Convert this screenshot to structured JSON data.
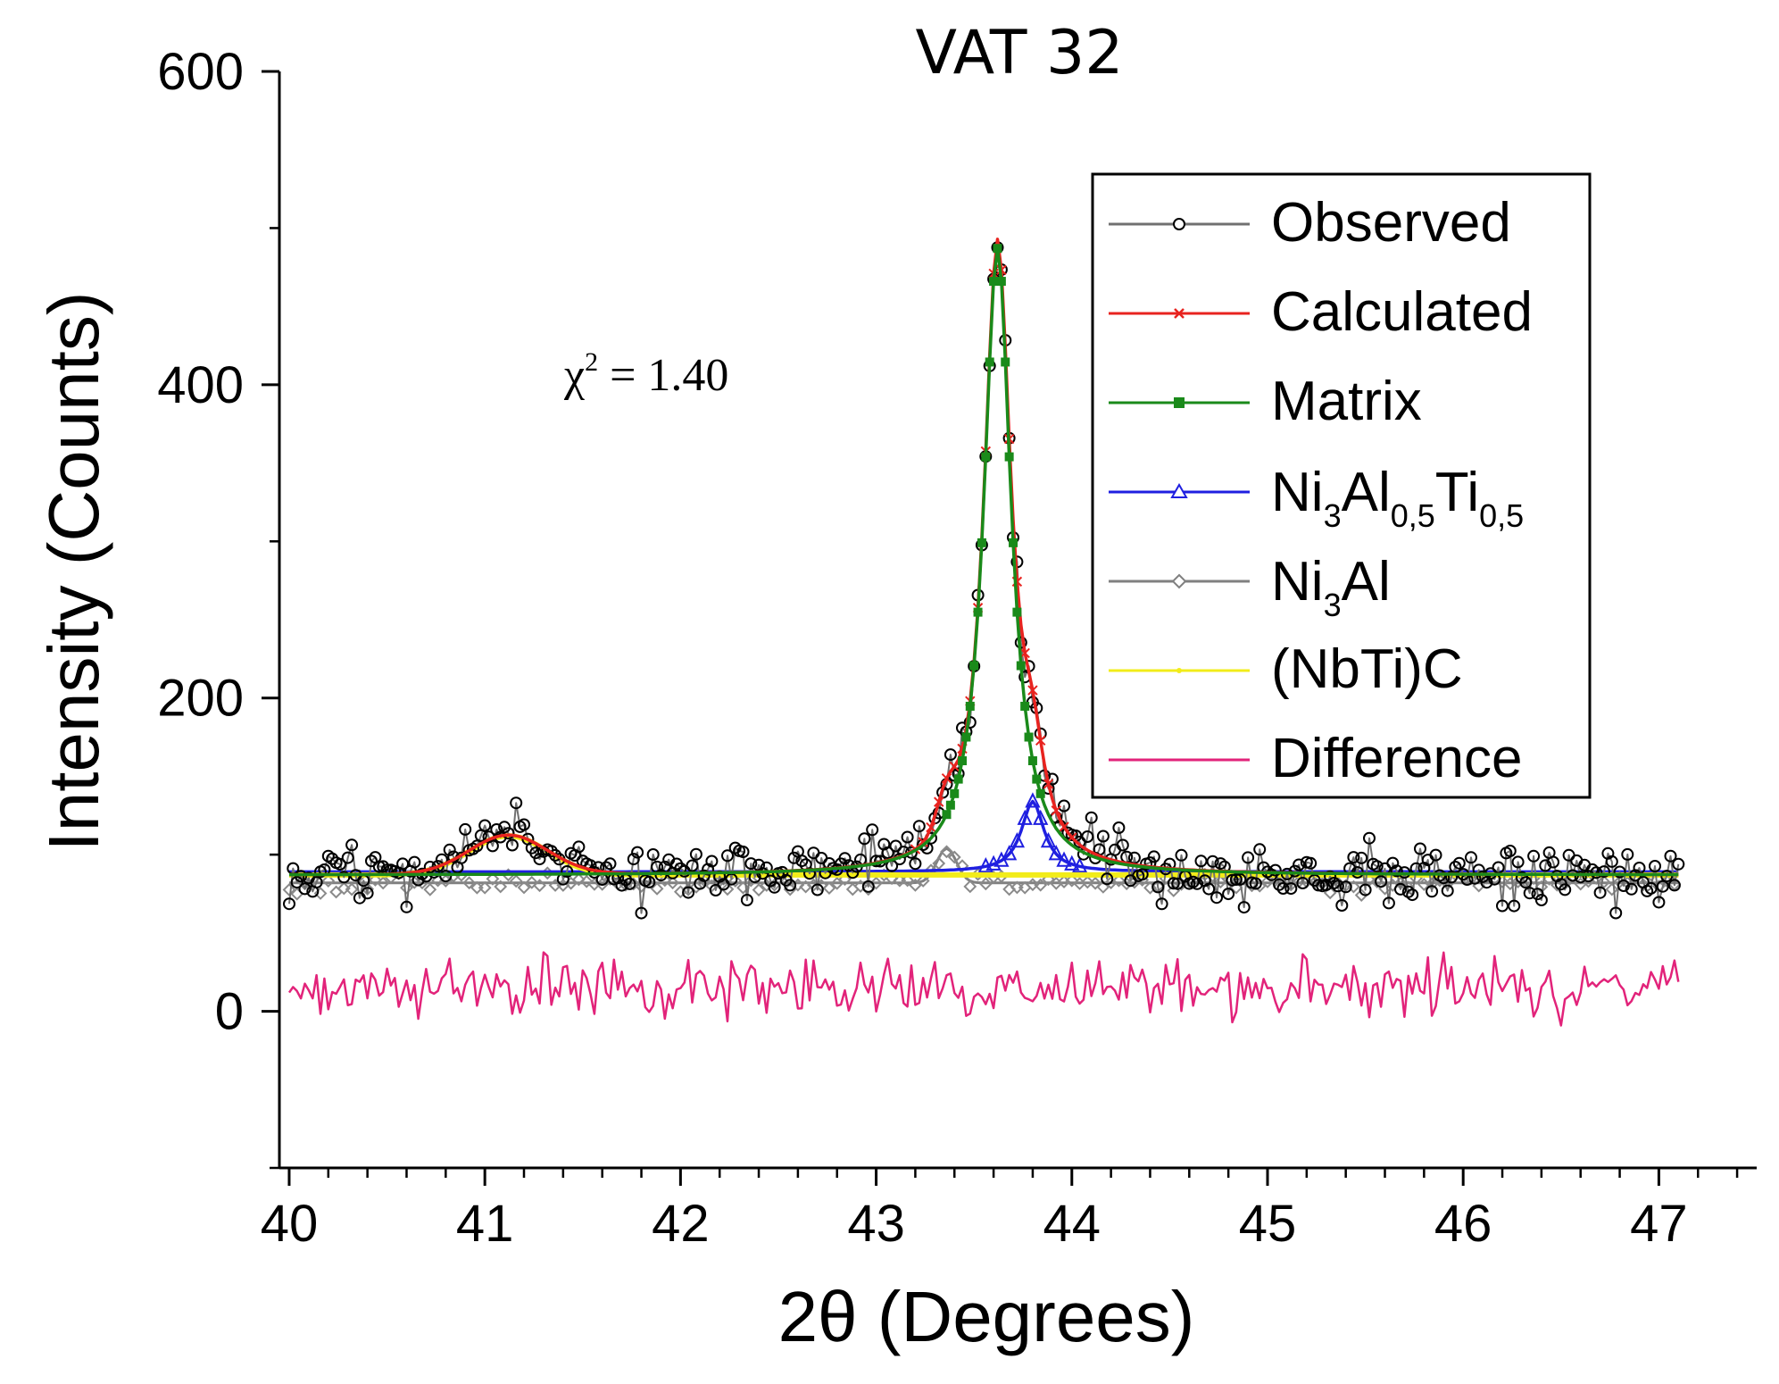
{
  "chart_data": {
    "type": "line",
    "title": "VAT 32",
    "xlabel": "2θ (Degrees)",
    "ylabel": "Intensity (Counts)",
    "xlim": [
      39.95,
      47.5
    ],
    "ylim": [
      -100,
      600
    ],
    "xticks": [
      40,
      41,
      42,
      43,
      44,
      45,
      46,
      47
    ],
    "yticks": [
      0,
      200,
      400,
      600
    ],
    "annotation": {
      "symbol": "χ",
      "sup": "2",
      "text": " = 1.40"
    },
    "legend_position": "top-right",
    "baseline": 87,
    "peaks": [
      {
        "center": 41.12,
        "height": 25,
        "width": 0.2
      },
      {
        "center": 43.36,
        "height": 22,
        "width": 0.05
      },
      {
        "center": 43.62,
        "height": 400,
        "width": 0.085
      },
      {
        "center": 43.8,
        "height": 45,
        "width": 0.07
      }
    ],
    "series": [
      {
        "name": "Observed",
        "label": "Observed",
        "color": "#000000",
        "line_color": "#707070",
        "marker": "open-circle"
      },
      {
        "name": "Calculated",
        "label": "Calculated",
        "color": "#e8231f",
        "marker": "x"
      },
      {
        "name": "Matrix",
        "label": "Matrix",
        "color": "#1a8a1a",
        "marker": "filled-square"
      },
      {
        "name": "Ni3Al0.5Ti0.5",
        "label_main": "Ni",
        "label_sub1": "3",
        "label_mid": "Al",
        "label_sub2": "0,5",
        "label_mid2": "Ti",
        "label_sub3": "0,5",
        "color": "#1f1fe0",
        "marker": "open-triangle"
      },
      {
        "name": "Ni3Al",
        "label_main": "Ni",
        "label_sub1": "3",
        "label_mid": "Al",
        "color": "#808080",
        "marker": "open-diamond"
      },
      {
        "name": "(NbTi)C",
        "label": "(NbTi)C",
        "color": "#f2ec1a",
        "marker": "dot"
      },
      {
        "name": "Difference",
        "label": "Difference",
        "color": "#e2237a",
        "marker": "none"
      }
    ],
    "key_points": {
      "Observed_max": {
        "x": 43.6,
        "y": 500
      },
      "Matrix_max": {
        "x": 43.62,
        "y": 487
      },
      "Ni3Al0.5Ti0.5_max": {
        "x": 43.8,
        "y": 132
      },
      "NbTiC_max": {
        "x": 41.12,
        "y": 112
      },
      "Difference_mean": 15
    }
  }
}
